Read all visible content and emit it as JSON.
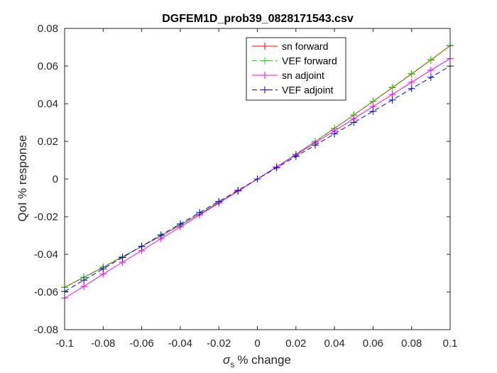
{
  "chart_data": {
    "type": "line",
    "title": "DGFEM1D_prob39_0828171543.csv",
    "xlabel": "% change",
    "xlabel_symbol": "σ",
    "xlabel_subscript": "s",
    "ylabel": "QoI % response",
    "xlim": [
      -0.1,
      0.1
    ],
    "ylim": [
      -0.08,
      0.08
    ],
    "x_ticks": [
      -0.1,
      -0.08,
      -0.06,
      -0.04,
      -0.02,
      0,
      0.02,
      0.04,
      0.06,
      0.08,
      0.1
    ],
    "x_tick_labels": [
      "-0.1",
      "-0.08",
      "-0.06",
      "-0.04",
      "-0.02",
      "0",
      "0.02",
      "0.04",
      "0.06",
      "0.08",
      "0.1"
    ],
    "y_ticks": [
      -0.08,
      -0.06,
      -0.04,
      -0.02,
      0,
      0.02,
      0.04,
      0.06,
      0.08
    ],
    "y_tick_labels": [
      "-0.08",
      "-0.06",
      "-0.04",
      "-0.02",
      "0",
      "0.02",
      "0.04",
      "0.06",
      "0.08"
    ],
    "grid": false,
    "legend_position": "top-right",
    "x": [
      -0.1,
      -0.09,
      -0.08,
      -0.07,
      -0.06,
      -0.05,
      -0.04,
      -0.03,
      -0.02,
      -0.01,
      0,
      0.01,
      0.02,
      0.03,
      0.04,
      0.05,
      0.06,
      0.07,
      0.08,
      0.09,
      0.1
    ],
    "series": [
      {
        "name": "sn forward",
        "color": "#ff0000",
        "style": "solid",
        "values": [
          -0.0575,
          -0.0522,
          -0.0469,
          -0.0413,
          -0.0358,
          -0.0302,
          -0.0245,
          -0.0186,
          -0.0125,
          -0.0064,
          0,
          0.0064,
          0.0131,
          0.0199,
          0.0269,
          0.034,
          0.0412,
          0.0485,
          0.0558,
          0.0632,
          0.0708
        ]
      },
      {
        "name": "VEF forward",
        "color": "#00ee00",
        "style": "dashed",
        "values": [
          -0.0574,
          -0.0521,
          -0.0467,
          -0.0412,
          -0.0357,
          -0.0301,
          -0.0243,
          -0.0185,
          -0.0124,
          -0.0063,
          0,
          0.0065,
          0.0132,
          0.02,
          0.027,
          0.0341,
          0.0413,
          0.0487,
          0.056,
          0.0634,
          0.071
        ]
      },
      {
        "name": "sn adjoint",
        "color": "#ff00ff",
        "style": "solid",
        "values": [
          -0.0633,
          -0.057,
          -0.0505,
          -0.0442,
          -0.038,
          -0.0317,
          -0.0255,
          -0.0192,
          -0.0128,
          -0.0064,
          0,
          0.0064,
          0.0128,
          0.0192,
          0.0256,
          0.032,
          0.0385,
          0.0449,
          0.0514,
          0.0578,
          0.064
        ]
      },
      {
        "name": "VEF adjoint",
        "color": "#0000ff",
        "style": "dashed",
        "values": [
          -0.0597,
          -0.0537,
          -0.0477,
          -0.0417,
          -0.0357,
          -0.0297,
          -0.0238,
          -0.0178,
          -0.0119,
          -0.006,
          0,
          0.006,
          0.012,
          0.018,
          0.024,
          0.03,
          0.036,
          0.042,
          0.048,
          0.054,
          0.06
        ]
      }
    ]
  }
}
